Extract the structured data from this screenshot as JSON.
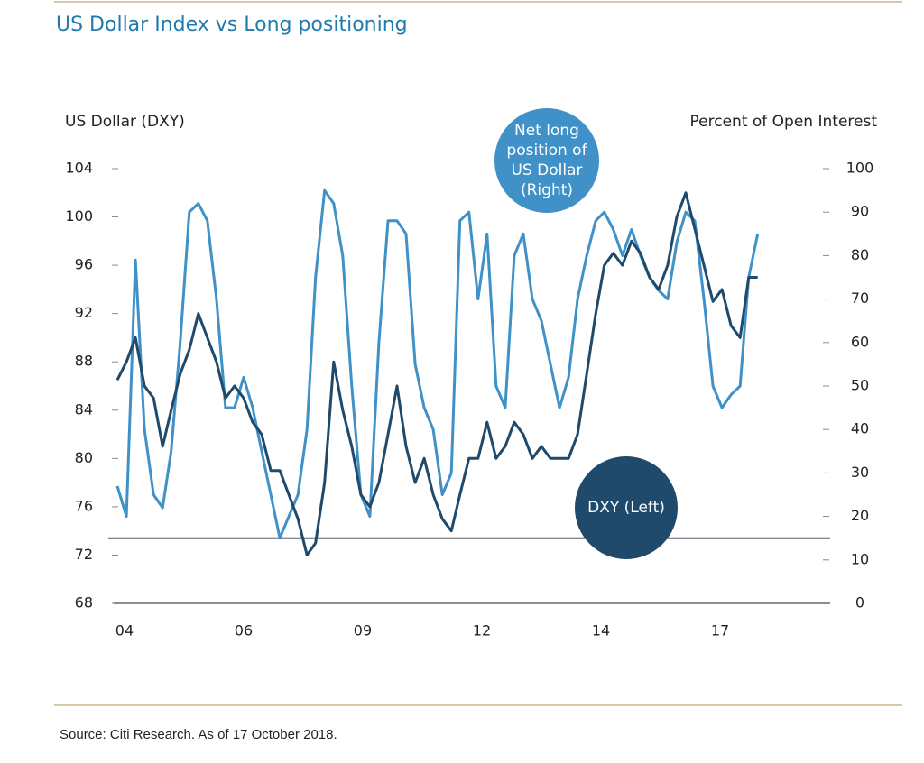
{
  "chart_data": {
    "type": "line",
    "title": "US Dollar Index vs Long positioning",
    "y_label": "US Dollar (DXY)",
    "y2_label": "Percent of Open Interest",
    "source": "Source: Citi Research. As of 17 October 2018.",
    "x": [
      2003.85,
      2004.04,
      2004.23,
      2004.42,
      2004.61,
      2004.8,
      2004.98,
      2005.17,
      2005.36,
      2005.55,
      2005.74,
      2005.93,
      2006.12,
      2006.31,
      2006.5,
      2006.69,
      2006.88,
      2007.07,
      2007.26,
      2007.45,
      2007.64,
      2007.83,
      2008.01,
      2008.2,
      2008.39,
      2008.58,
      2008.77,
      2008.96,
      2009.15,
      2009.34,
      2009.53,
      2009.72,
      2009.91,
      2010.1,
      2010.29,
      2010.48,
      2010.67,
      2010.86,
      2011.04,
      2011.23,
      2011.42,
      2011.61,
      2011.8,
      2011.99,
      2012.18,
      2012.37,
      2012.56,
      2012.75,
      2012.94,
      2013.13,
      2013.32,
      2013.51,
      2013.7,
      2013.89,
      2014.07,
      2014.26,
      2014.45,
      2014.64,
      2014.83,
      2015.02,
      2015.21,
      2015.4,
      2015.59,
      2015.78,
      2015.97,
      2016.16,
      2016.35,
      2016.54,
      2016.73,
      2016.92,
      2017.1,
      2017.29
    ],
    "xlim": [
      2003.66,
      2018.81
    ],
    "xticks": [
      {
        "value": 2004,
        "label": "04"
      },
      {
        "value": 2006.5,
        "label": "06"
      },
      {
        "value": 2009,
        "label": "09"
      },
      {
        "value": 2011.5,
        "label": "12"
      },
      {
        "value": 2014,
        "label": "14"
      },
      {
        "value": 2016.5,
        "label": "17"
      }
    ],
    "ylim": [
      68,
      104
    ],
    "yticks": [
      68,
      72,
      76,
      80,
      84,
      88,
      92,
      96,
      100,
      104
    ],
    "y2lim": [
      0,
      100
    ],
    "y2ticks": [
      0,
      10,
      20,
      30,
      40,
      50,
      60,
      70,
      80,
      90,
      100
    ],
    "hline": {
      "axis": "y2",
      "value": 15,
      "color": "#58626c"
    },
    "series": [
      {
        "name": "DXY (Left)",
        "color": "#1f4a6b",
        "axis": "y",
        "values": [
          86.5,
          88,
          90,
          86,
          85,
          81,
          84,
          87,
          89,
          92,
          90,
          88,
          85,
          86,
          85,
          83,
          82,
          79,
          79,
          77,
          75,
          72,
          73,
          78,
          88,
          84,
          81,
          77,
          76,
          78,
          82,
          86,
          81,
          78,
          80,
          77,
          75,
          74,
          77,
          80,
          80,
          83,
          80,
          81,
          83,
          82,
          80,
          81,
          80,
          80,
          80,
          82,
          87,
          92,
          96,
          97,
          96,
          98,
          97,
          95,
          94,
          96,
          100,
          102,
          99,
          96,
          93,
          94,
          91,
          90,
          95,
          95
        ]
      },
      {
        "name": "Net long position of US Dollar (Right)",
        "color": "#3f91c8",
        "axis": "y2",
        "values": [
          27,
          20,
          79,
          40,
          25,
          22,
          35,
          60,
          90,
          92,
          88,
          70,
          45,
          45,
          52,
          45,
          35,
          25,
          15,
          20,
          25,
          40,
          75,
          95,
          92,
          80,
          50,
          25,
          20,
          60,
          88,
          88,
          85,
          55,
          45,
          40,
          25,
          30,
          88,
          90,
          70,
          85,
          50,
          45,
          80,
          85,
          70,
          65,
          55,
          45,
          52,
          70,
          80,
          88,
          90,
          86,
          80,
          86,
          80,
          75,
          72,
          70,
          83,
          90,
          88,
          70,
          50,
          45,
          48,
          50,
          75,
          85
        ]
      }
    ]
  }
}
